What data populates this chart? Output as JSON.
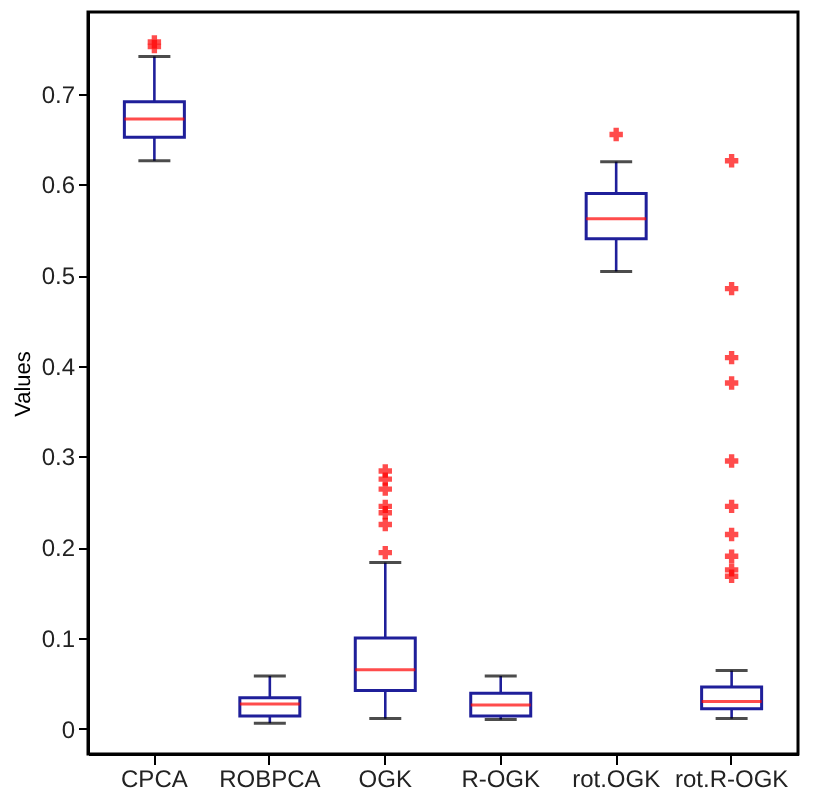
{
  "chart_data": {
    "type": "box",
    "ylabel": "Values",
    "categories": [
      "CPCA",
      "ROBPCA",
      "OGK",
      "R-OGK",
      "rot.OGK",
      "rot.R-OGK"
    ],
    "series": [
      {
        "color": "#1f1f9a",
        "boxes": [
          {
            "low": 0.626,
            "q1": 0.652,
            "median": 0.672,
            "q3": 0.691,
            "high": 0.741,
            "outliers": [
              0.757,
              0.752
            ]
          },
          {
            "low": 0.006,
            "q1": 0.014,
            "median": 0.027,
            "q3": 0.034,
            "high": 0.058
          },
          {
            "low": 0.011,
            "q1": 0.042,
            "median": 0.065,
            "q3": 0.1,
            "high": 0.183,
            "outliers": [
              0.284,
              0.275,
              0.264,
              0.245,
              0.238,
              0.225,
              0.194
            ]
          },
          {
            "low": 0.01,
            "q1": 0.014,
            "median": 0.026,
            "q3": 0.039,
            "high": 0.058
          },
          {
            "low": 0.504,
            "q1": 0.54,
            "median": 0.562,
            "q3": 0.59,
            "high": 0.625,
            "outliers": [
              0.655
            ]
          },
          {
            "low": 0.011,
            "q1": 0.022,
            "median": 0.03,
            "q3": 0.046,
            "high": 0.064,
            "outliers": [
              0.626,
              0.485,
              0.409,
              0.381,
              0.295,
              0.245,
              0.214,
              0.19,
              0.175,
              0.168
            ]
          }
        ]
      }
    ],
    "ylim": [
      -0.028,
      0.79
    ],
    "yticks": [
      0,
      0.1,
      0.2,
      0.3,
      0.4,
      0.5,
      0.6,
      0.7
    ],
    "grid": false
  }
}
